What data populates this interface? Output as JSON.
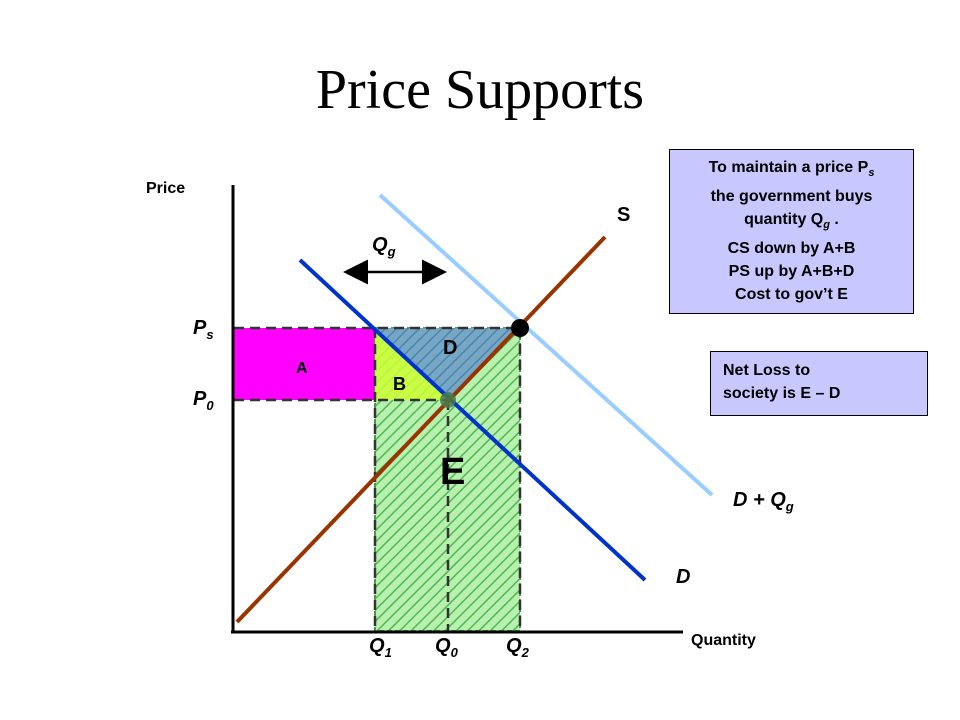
{
  "title": "Price Supports",
  "axes": {
    "y_label": "Price",
    "x_label": "Quantity"
  },
  "curves": {
    "supply": {
      "label": "S",
      "color": "#993300"
    },
    "demand": {
      "label": "D",
      "color": "#0033cc"
    },
    "demand_plus_gov": {
      "label": "D + Q",
      "label_sub": "g",
      "color": "#99ccff"
    }
  },
  "price_levels": {
    "ps": {
      "label": "P",
      "sub": "s"
    },
    "p0": {
      "label": "P",
      "sub": "0"
    }
  },
  "quantities": {
    "q1": {
      "label": "Q",
      "sub": "1"
    },
    "q0": {
      "label": "Q",
      "sub": "0"
    },
    "q2": {
      "label": "Q",
      "sub": "2"
    }
  },
  "qg_arrow": {
    "label": "Q",
    "sub": "g"
  },
  "areas": {
    "A": {
      "label": "A",
      "color": "#ff00ff"
    },
    "B": {
      "label": "B",
      "color": "#ccff33"
    },
    "D": {
      "label": "D",
      "color": "#6699cc"
    },
    "E": {
      "label": "E",
      "color": "#66cc66"
    }
  },
  "info_box": {
    "line1_pre": "To maintain a price P",
    "line1_sub": "s",
    "line2": "the government buys",
    "line3_pre": "quantity Q",
    "line3_sub": "g",
    "line3_post": " .",
    "line4": "CS down by A+B",
    "line5": "PS up by A+B+D",
    "line6": "Cost to gov’t E"
  },
  "net_loss_box": {
    "line1": "Net Loss to",
    "line2": "society is E – D"
  }
}
